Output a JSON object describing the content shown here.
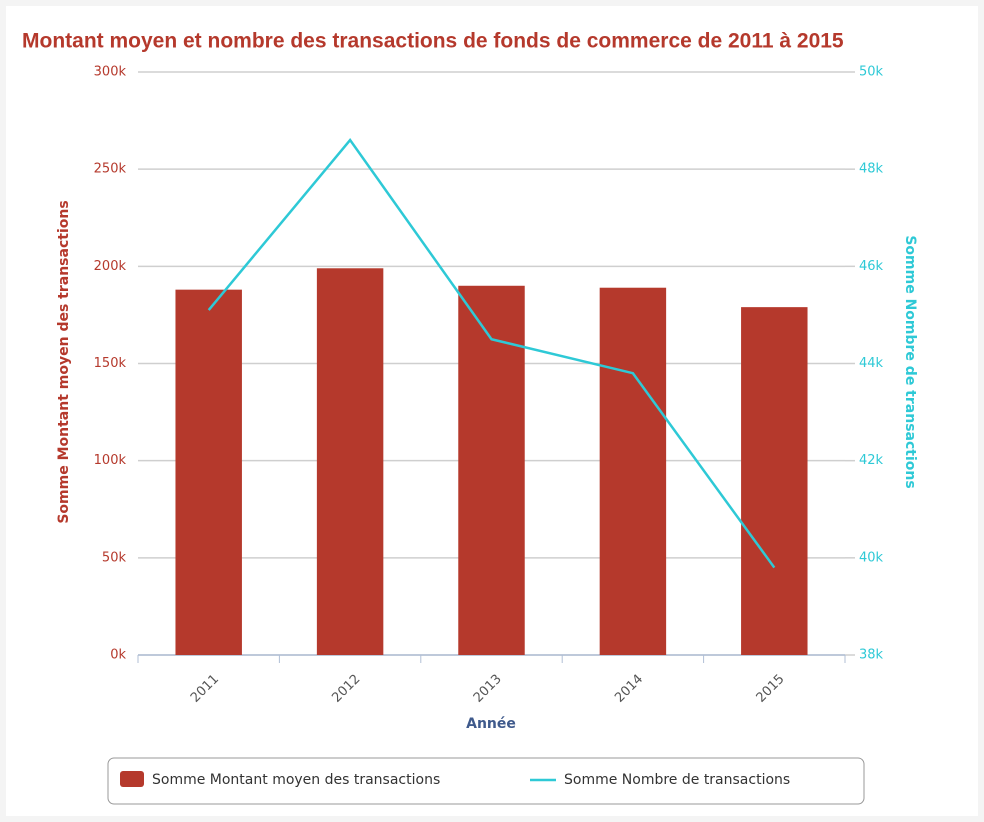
{
  "chart_data": {
    "type": "bar-line",
    "title": "Montant moyen et nombre des transactions de fonds de commerce de 2011 à 2015",
    "x_label": "Année",
    "y_label": "Somme Montant moyen des transactions",
    "y2_label": "Somme Nombre de transactions",
    "categories": [
      "2011",
      "2012",
      "2013",
      "2014",
      "2015"
    ],
    "series": [
      {
        "name": "Somme Montant moyen des transactions",
        "type": "bar",
        "color": "#b5392c",
        "values": [
          188000,
          199000,
          190000,
          189000,
          179000
        ]
      },
      {
        "name": "Somme Nombre de transactions",
        "type": "line",
        "axis": "y2",
        "color": "#2ec9d6",
        "values": [
          45100,
          48600,
          44500,
          43800,
          39800
        ]
      }
    ],
    "ylim": [
      0,
      300000
    ],
    "yticks": [
      {
        "value": 0,
        "label": "0k"
      },
      {
        "value": 50000,
        "label": "50k"
      },
      {
        "value": 100000,
        "label": "100k"
      },
      {
        "value": 150000,
        "label": "150k"
      },
      {
        "value": 200000,
        "label": "200k"
      },
      {
        "value": 250000,
        "label": "250k"
      },
      {
        "value": 300000,
        "label": "300k"
      }
    ],
    "y2lim": [
      38000,
      50000
    ],
    "y2ticks": [
      {
        "value": 38000,
        "label": "38k"
      },
      {
        "value": 40000,
        "label": "40k"
      },
      {
        "value": 42000,
        "label": "42k"
      },
      {
        "value": 44000,
        "label": "44k"
      },
      {
        "value": 46000,
        "label": "46k"
      },
      {
        "value": 48000,
        "label": "48k"
      },
      {
        "value": 50000,
        "label": "50k"
      }
    ],
    "grid": true,
    "legend": "bottom"
  }
}
